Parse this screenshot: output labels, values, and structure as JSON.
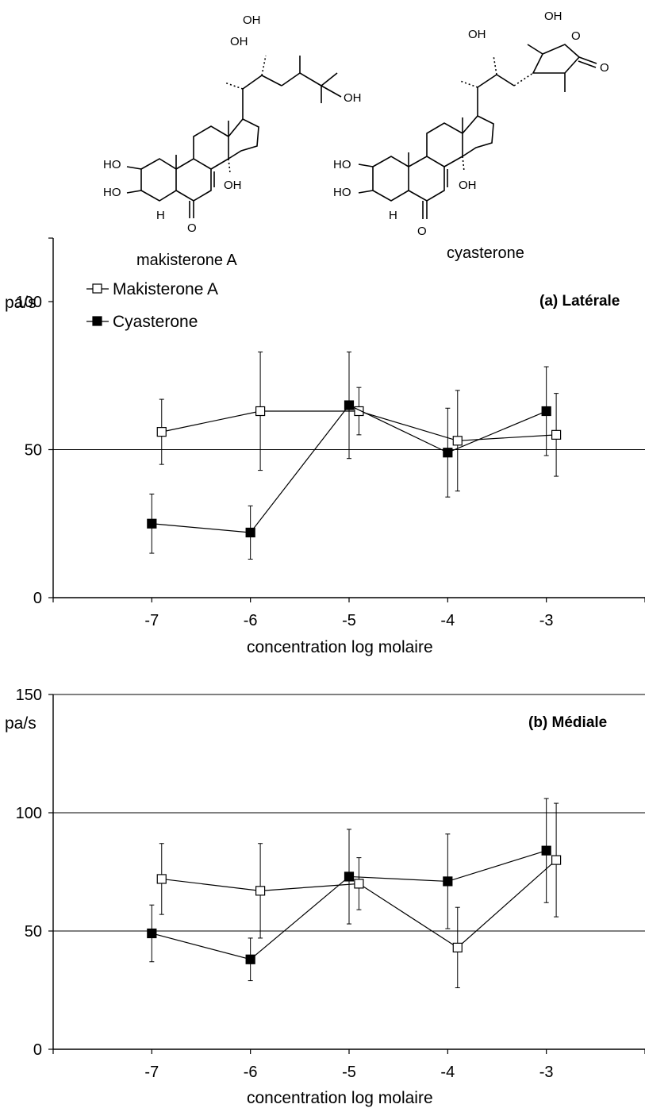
{
  "structures": {
    "left": {
      "name": "makisterone A",
      "atom_labels": [
        "OH",
        "OH",
        "OH",
        "HO",
        "HO",
        "H",
        "O",
        "OH"
      ]
    },
    "right": {
      "name": "cyasterone",
      "atom_labels": [
        "OH",
        "OH",
        "O",
        "O",
        "HO",
        "HO",
        "H",
        "O",
        "OH"
      ]
    }
  },
  "chart_data": [
    {
      "type": "line",
      "title": "(a) Latérale",
      "xlabel": "concentration log molaire",
      "ylabel": "pa/s",
      "x_ticks": [
        "-7",
        "-6",
        "-5",
        "-4",
        "-3"
      ],
      "y_ticks": [
        "0",
        "50",
        "100"
      ],
      "xlim": [
        -8,
        -2
      ],
      "ylim": [
        0,
        100
      ],
      "grid": "horizontal",
      "legend": "top-left",
      "series": [
        {
          "name": "Makisterone A",
          "marker": "open-square",
          "x": [
            -6.9,
            -5.9,
            -4.9,
            -3.9,
            -2.9
          ],
          "y": [
            56,
            63,
            63,
            53,
            55
          ],
          "err": [
            11,
            20,
            8,
            17,
            14
          ]
        },
        {
          "name": "Cyasterone",
          "marker": "filled-square",
          "x": [
            -7,
            -6,
            -5,
            -4,
            -3
          ],
          "y": [
            25,
            22,
            65,
            49,
            63
          ],
          "err": [
            10,
            9,
            18,
            15,
            15
          ]
        }
      ]
    },
    {
      "type": "line",
      "title": "(b) Médiale",
      "xlabel": "concentration log molaire",
      "ylabel": "pa/s",
      "x_ticks": [
        "-7",
        "-6",
        "-5",
        "-4",
        "-3"
      ],
      "y_ticks": [
        "0",
        "50",
        "100",
        "150"
      ],
      "xlim": [
        -8,
        -2
      ],
      "ylim": [
        0,
        150
      ],
      "grid": "horizontal",
      "series": [
        {
          "name": "Makisterone A",
          "marker": "open-square",
          "x": [
            -6.9,
            -5.9,
            -4.9,
            -3.9,
            -2.9
          ],
          "y": [
            72,
            67,
            70,
            43,
            80
          ],
          "err": [
            15,
            20,
            11,
            17,
            24
          ]
        },
        {
          "name": "Cyasterone",
          "marker": "filled-square",
          "x": [
            -7,
            -6,
            -5,
            -4,
            -3
          ],
          "y": [
            49,
            38,
            73,
            71,
            84
          ],
          "err": [
            12,
            9,
            20,
            20,
            22
          ]
        }
      ]
    }
  ],
  "colors": {
    "line": "#000000",
    "grid": "#000000",
    "open_marker_fill": "#ffffff",
    "filled_marker_fill": "#000000"
  }
}
